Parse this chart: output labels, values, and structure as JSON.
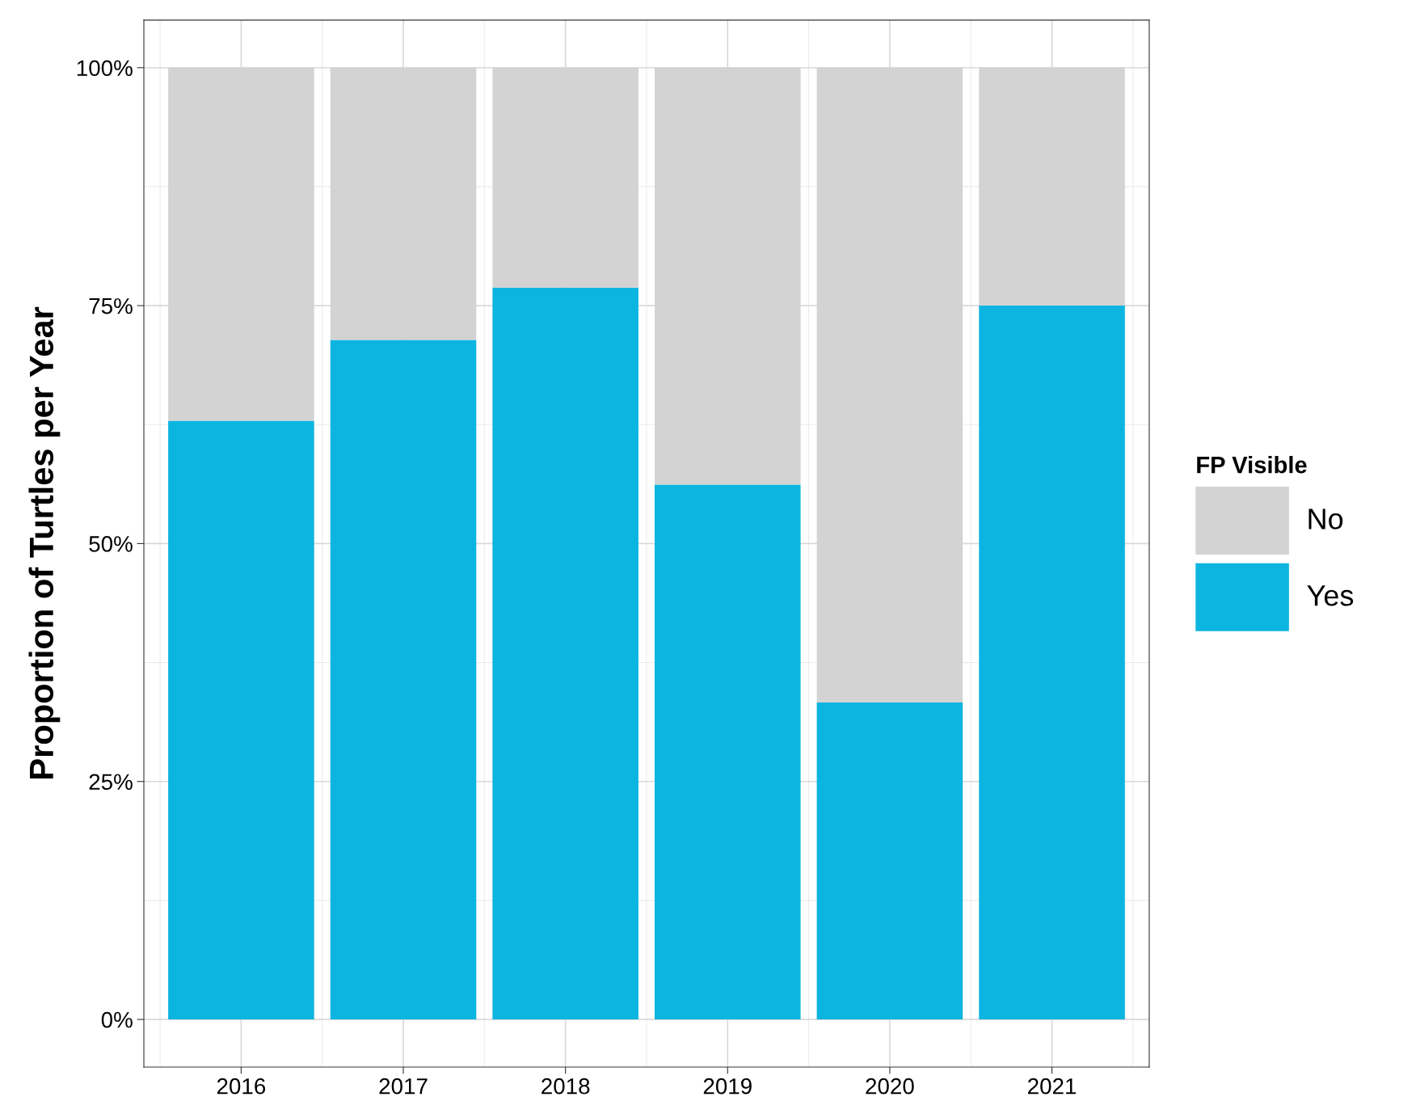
{
  "chart_data": {
    "type": "bar",
    "stacked": true,
    "categories": [
      "2016",
      "2017",
      "2018",
      "2019",
      "2020",
      "2021"
    ],
    "series": [
      {
        "name": "Yes",
        "color": "#0bb5e0",
        "values": [
          62.9,
          71.4,
          76.9,
          56.2,
          33.3,
          75.0
        ]
      },
      {
        "name": "No",
        "color": "#d3d3d3",
        "values": [
          37.1,
          28.6,
          23.1,
          43.8,
          66.7,
          25.0
        ]
      }
    ],
    "ylabel": "Proportion of Turtles per Year",
    "legend_title": "FP Visible",
    "ylim": [
      -5,
      105
    ],
    "yticks": [
      {
        "value": 0,
        "label": "0%"
      },
      {
        "value": 25,
        "label": "25%"
      },
      {
        "value": 50,
        "label": "50%"
      },
      {
        "value": 75,
        "label": "75%"
      },
      {
        "value": 100,
        "label": "100%"
      }
    ],
    "grid": true,
    "legend": "right"
  }
}
